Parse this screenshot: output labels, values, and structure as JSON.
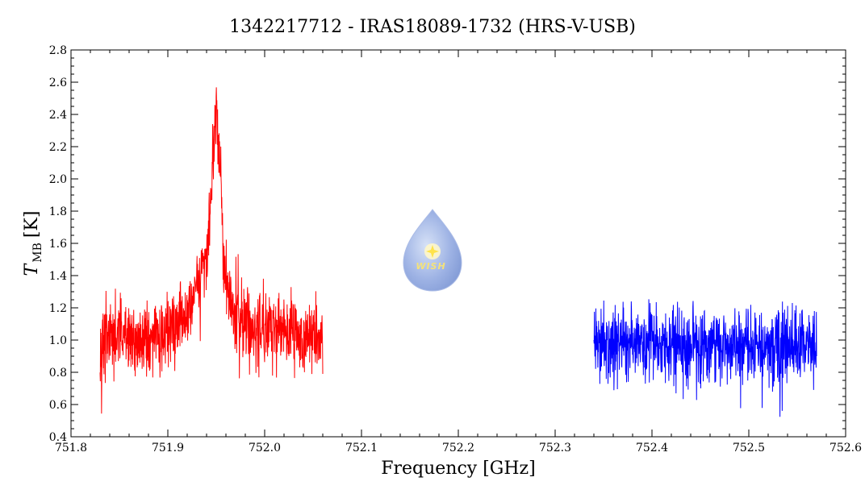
{
  "chart_data": {
    "type": "line",
    "title": "1342217712 - IRAS18089-1732 (HRS-V-USB)",
    "xlabel": "Frequency [GHz]",
    "ylabel_main": "T",
    "ylabel_sub": "MB",
    "ylabel_unit": "[K]",
    "xlim": [
      751.8,
      752.6
    ],
    "ylim": [
      0.4,
      2.8
    ],
    "xticks": [
      "751.8",
      "751.9",
      "752.0",
      "752.1",
      "752.2",
      "752.3",
      "752.4",
      "752.5",
      "752.6"
    ],
    "yticks": [
      "0.4",
      "0.6",
      "0.8",
      "1.0",
      "1.2",
      "1.4",
      "1.6",
      "1.8",
      "2.0",
      "2.2",
      "2.4",
      "2.6",
      "2.8"
    ],
    "grid": false,
    "series": [
      {
        "color": "#ff0000",
        "x": [
          751.83,
          751.84,
          751.85,
          751.86,
          751.87,
          751.88,
          751.89,
          751.9,
          751.91,
          751.915,
          751.92,
          751.925,
          751.93,
          751.935,
          751.94,
          751.943,
          751.946,
          751.948,
          751.95,
          751.952,
          751.954,
          751.956,
          751.958,
          751.96,
          751.963,
          751.966,
          751.97,
          751.975,
          751.98,
          751.99,
          752.0,
          752.01,
          752.02,
          752.03,
          752.04,
          752.05,
          752.06
        ],
        "y": [
          1.0,
          1.02,
          1.0,
          1.03,
          1.01,
          0.98,
          1.02,
          1.05,
          1.08,
          1.12,
          1.16,
          1.22,
          1.3,
          1.4,
          1.55,
          1.75,
          2.05,
          2.3,
          2.4,
          2.32,
          2.05,
          1.75,
          1.5,
          1.35,
          1.25,
          1.18,
          1.15,
          1.12,
          1.1,
          1.08,
          1.06,
          1.05,
          1.07,
          1.05,
          1.04,
          1.03,
          1.02
        ]
      },
      {
        "color": "#0000ff",
        "x": [
          752.34,
          752.36,
          752.38,
          752.4,
          752.42,
          752.44,
          752.46,
          752.48,
          752.5,
          752.52,
          752.54,
          752.56,
          752.57
        ],
        "y": [
          0.97,
          0.98,
          0.97,
          0.98,
          0.98,
          0.97,
          0.98,
          0.97,
          0.98,
          0.97,
          0.98,
          0.97,
          0.98
        ]
      }
    ]
  },
  "logo": {
    "text": "WISH"
  }
}
